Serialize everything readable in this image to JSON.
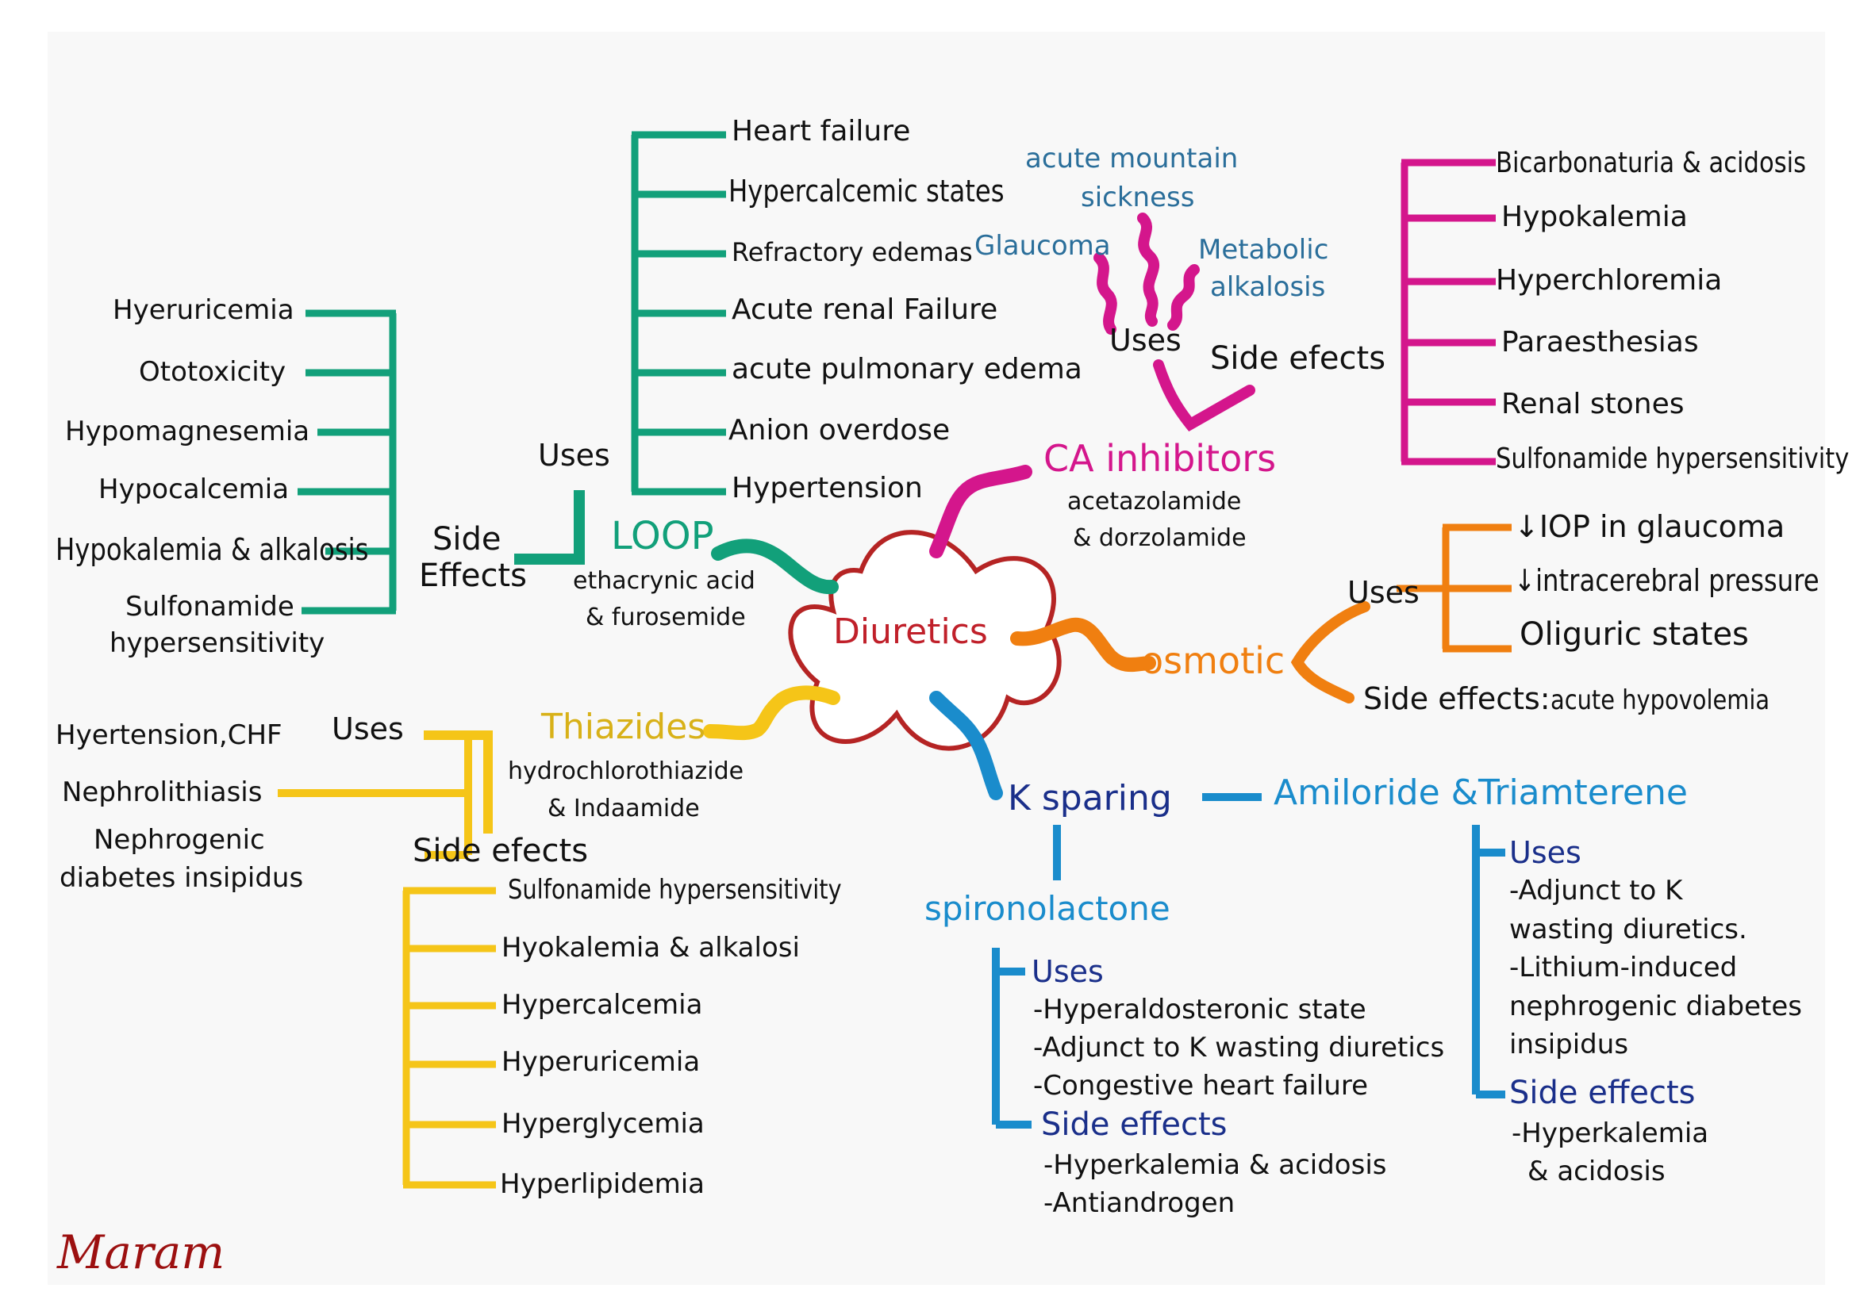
{
  "center": {
    "label": "Diuretics"
  },
  "colors": {
    "loop": "#12a07a",
    "ca": "#d4168c",
    "osmotic": "#f07f10",
    "thiazide": "#f5c518",
    "k_sparing": "#1a8ccc",
    "center_outline": "#b52424",
    "center_text": "#c0202a"
  },
  "loop": {
    "title": "LOOP",
    "drugs": [
      "ethacrynic acid",
      "& furosemide"
    ],
    "uses_label": "Uses",
    "uses": [
      "Heart failure",
      "Hypercalcemic states",
      "Refractory edemas",
      "Acute renal Failure",
      "acute pulmonary edema",
      "Anion overdose",
      "Hypertension"
    ],
    "side_effects_label": [
      "Side",
      "Effects"
    ],
    "side_effects": [
      "Hyeruricemia",
      "Ototoxicity",
      "Hypomagnesemia",
      "Hypocalcemia",
      "Hypokalemia & alkalosis",
      "Sulfonamide",
      "hypersensitivity"
    ]
  },
  "ca_inhibitors": {
    "title": "CA inhibitors",
    "drugs": [
      "acetazolamide",
      "& dorzolamide"
    ],
    "uses_label": "Uses",
    "uses": [
      "acute mountain",
      "sickness",
      "Glaucoma",
      "Metabolic",
      "alkalosis"
    ],
    "side_effects_label": "Side efects",
    "side_effects": [
      "Bicarbonaturia & acidosis",
      "Hypokalemia",
      "Hyperchloremia",
      "Paraesthesias",
      "Renal stones",
      "Sulfonamide hypersensitivity"
    ]
  },
  "osmotic": {
    "title": "osmotic",
    "uses_label": "Uses",
    "uses": [
      "↓IOP in glaucoma",
      "↓intracerebral pressure",
      "Oliguric states"
    ],
    "side_effects_label": "Side effects:",
    "side_effects_value": "acute hypovolemia"
  },
  "thiazides": {
    "title": "Thiazides",
    "drugs": [
      "hydrochlorothiazide",
      "& Indaamide"
    ],
    "uses_label": "Uses",
    "uses": [
      "Hyertension,CHF",
      "Nephrolithiasis",
      "Nephrogenic",
      "diabetes insipidus"
    ],
    "side_effects_label": "Side efects",
    "side_effects": [
      "Sulfonamide hypersensitivity",
      "Hyokalemia & alkalosi",
      "Hypercalcemia",
      "Hyperuricemia",
      "Hyperglycemia",
      "Hyperlipidemia"
    ]
  },
  "k_sparing": {
    "title": "K sparing",
    "amiloride": {
      "title": "Amiloride &Triamterene",
      "uses_label": "Uses",
      "uses": [
        "-Adjunct to K",
        "wasting diuretics.",
        "-Lithium-induced",
        "nephrogenic diabetes",
        "insipidus"
      ],
      "side_effects_label": "Side effects",
      "side_effects": [
        "-Hyperkalemia",
        "& acidosis"
      ]
    },
    "spironolactone": {
      "title": "spironolactone",
      "uses_label": "Uses",
      "uses": [
        "-Hyperaldosteronic state",
        "-Adjunct to K wasting diuretics",
        "-Congestive heart failure"
      ],
      "side_effects_label": "Side effects",
      "side_effects": [
        "-Hyperkalemia & acidosis",
        "-Antiandrogen"
      ]
    }
  },
  "signature": "Maram"
}
